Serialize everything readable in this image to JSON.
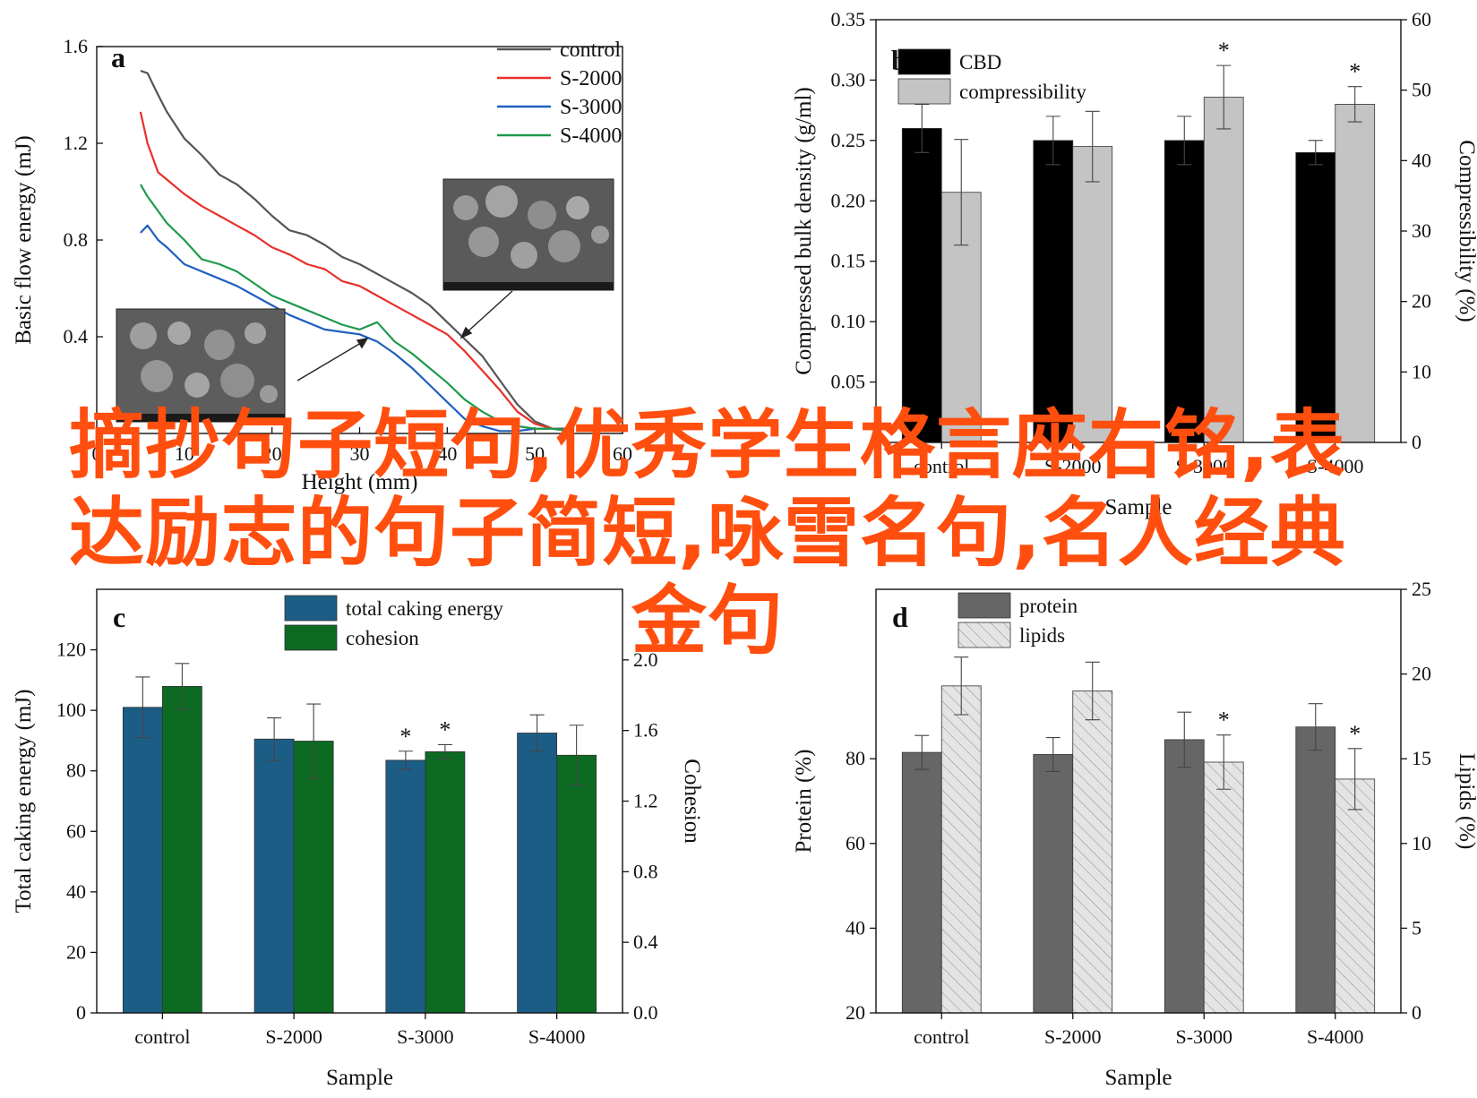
{
  "panels": {
    "a": {
      "letter": "a",
      "chart_data": {
        "type": "line",
        "xlabel": "Height (mm)",
        "ylabel": "Basic flow energy (mJ)",
        "xlim": [
          0,
          60
        ],
        "ylim": [
          0,
          1.6
        ],
        "xticks": [
          0,
          10,
          20,
          30,
          40,
          50,
          60
        ],
        "yticks": [
          0.4,
          0.8,
          1.2,
          1.6
        ],
        "legend": "top-right",
        "series": [
          {
            "name": "control",
            "color": "#555555",
            "x": [
              5,
              5.8,
              7,
              8,
              10,
              12,
              14,
              16,
              18,
              20,
              22,
              24,
              26,
              28,
              30,
              32,
              34,
              36,
              38,
              40,
              42,
              44,
              46,
              48,
              50,
              52,
              54
            ],
            "y": [
              1.5,
              1.49,
              1.4,
              1.33,
              1.22,
              1.15,
              1.07,
              1.03,
              0.97,
              0.9,
              0.84,
              0.82,
              0.78,
              0.73,
              0.7,
              0.66,
              0.62,
              0.58,
              0.53,
              0.46,
              0.39,
              0.32,
              0.22,
              0.12,
              0.05,
              0.02,
              0.02
            ]
          },
          {
            "name": "S-2000",
            "color": "#e8302b",
            "x": [
              5,
              5.8,
              7,
              8,
              10,
              12,
              14,
              16,
              18,
              20,
              22,
              24,
              26,
              28,
              30,
              32,
              34,
              36,
              38,
              40,
              42,
              44,
              46,
              48,
              50,
              52,
              54
            ],
            "y": [
              1.33,
              1.2,
              1.08,
              1.05,
              0.99,
              0.94,
              0.9,
              0.86,
              0.82,
              0.77,
              0.74,
              0.7,
              0.68,
              0.63,
              0.61,
              0.57,
              0.53,
              0.49,
              0.45,
              0.41,
              0.34,
              0.26,
              0.18,
              0.09,
              0.04,
              0.02,
              0.01
            ]
          },
          {
            "name": "S-3000",
            "color": "#1f5fbf",
            "x": [
              5,
              5.8,
              7,
              8,
              10,
              12,
              14,
              16,
              18,
              20,
              22,
              24,
              26,
              28,
              30,
              32,
              34,
              36,
              38,
              40,
              42,
              44,
              46,
              48,
              50,
              52,
              54
            ],
            "y": [
              0.83,
              0.86,
              0.8,
              0.77,
              0.7,
              0.67,
              0.64,
              0.61,
              0.57,
              0.53,
              0.49,
              0.46,
              0.43,
              0.42,
              0.41,
              0.38,
              0.33,
              0.27,
              0.2,
              0.13,
              0.06,
              0.03,
              0.01,
              0.01,
              0.02,
              0.02,
              0.01
            ]
          },
          {
            "name": "S-4000",
            "color": "#1f9a4c",
            "x": [
              5,
              5.8,
              7,
              8,
              10,
              12,
              14,
              16,
              18,
              20,
              22,
              24,
              26,
              28,
              30,
              32,
              34,
              36,
              38,
              40,
              42,
              44,
              46,
              48,
              50,
              52,
              54
            ],
            "y": [
              1.03,
              0.98,
              0.92,
              0.87,
              0.8,
              0.72,
              0.7,
              0.67,
              0.62,
              0.57,
              0.54,
              0.51,
              0.48,
              0.45,
              0.43,
              0.46,
              0.38,
              0.33,
              0.27,
              0.21,
              0.14,
              0.09,
              0.05,
              0.03,
              0.02,
              0.02,
              0.01
            ]
          }
        ]
      }
    },
    "b": {
      "letter": "b",
      "chart_data": {
        "type": "bar",
        "xlabel": "Sample",
        "ylabel": "Compressed bulk density (g/ml)",
        "ylabel_right": "Compressibility (%)",
        "categories": [
          "control",
          "S-2000",
          "S-3000",
          "S-4000"
        ],
        "ylim": [
          0,
          0.35
        ],
        "ylim_right": [
          0,
          60
        ],
        "yticks": [
          0.05,
          0.1,
          0.15,
          0.2,
          0.25,
          0.3,
          0.35
        ],
        "ytick_labels": [
          "0.05",
          "0.10",
          "0.15",
          "0.20",
          "0.25",
          "0.30",
          "0.35"
        ],
        "yticks_right": [
          0,
          10,
          20,
          30,
          40,
          50,
          60
        ],
        "legend": "top-left",
        "series": [
          {
            "name": "CBD",
            "color": "#000000",
            "axis": "left",
            "values": [
              0.26,
              0.25,
              0.25,
              0.24
            ],
            "errors": [
              0.02,
              0.02,
              0.02,
              0.01
            ],
            "stars": [
              "",
              "",
              "",
              ""
            ]
          },
          {
            "name": "compressibility",
            "color": "#c4c4c4",
            "axis": "right",
            "values": [
              35.5,
              42.0,
              49.0,
              48.0
            ],
            "errors": [
              7.5,
              5.0,
              4.5,
              2.5
            ],
            "stars": [
              "",
              "",
              "*",
              "*"
            ]
          }
        ]
      }
    },
    "c": {
      "letter": "c",
      "chart_data": {
        "type": "bar",
        "xlabel": "Sample",
        "ylabel": "Total caking energy (mJ)",
        "ylabel_right": "Cohesion",
        "categories": [
          "control",
          "S-2000",
          "S-3000",
          "S-4000"
        ],
        "ylim": [
          0,
          140
        ],
        "ylim_right": [
          0.0,
          2.4
        ],
        "yticks": [
          0,
          20,
          40,
          60,
          80,
          100,
          120
        ],
        "ytick_labels": [
          "0",
          "20",
          "40",
          "60",
          "80",
          "100",
          "120"
        ],
        "yticks_right": [
          0.0,
          0.4,
          0.8,
          1.2,
          1.6,
          2.0
        ],
        "ytick_labels_right": [
          "0.0",
          "0.4",
          "0.8",
          "1.2",
          "1.6",
          "2.0"
        ],
        "legend": "top-center",
        "series": [
          {
            "name": "total caking energy",
            "color": "#1c5d86",
            "axis": "left",
            "values": [
              101,
              90.5,
              83.5,
              92.5
            ],
            "errors": [
              10,
              7,
              3,
              6
            ],
            "stars": [
              "",
              "",
              "*",
              ""
            ]
          },
          {
            "name": "cohesion",
            "color": "#0d6a22",
            "axis": "right",
            "values": [
              1.85,
              1.54,
              1.48,
              1.46
            ],
            "errors": [
              0.13,
              0.21,
              0.04,
              0.17
            ],
            "stars": [
              "",
              "",
              "*",
              ""
            ]
          }
        ]
      }
    },
    "d": {
      "letter": "d",
      "chart_data": {
        "type": "bar",
        "xlabel": "Sample",
        "ylabel": "Protein (%)",
        "ylabel_right": "Lipids (%)",
        "categories": [
          "control",
          "S-2000",
          "S-3000",
          "S-4000"
        ],
        "ylim": [
          20,
          120
        ],
        "ylim_right": [
          0,
          25
        ],
        "yticks": [
          20,
          40,
          60,
          80
        ],
        "yticks_right": [
          0,
          5,
          10,
          15,
          20,
          25
        ],
        "legend": "top-left",
        "series": [
          {
            "name": "protein",
            "color": "#666666",
            "axis": "left",
            "values": [
              81.5,
              81,
              84.5,
              87.5
            ],
            "errors": [
              4,
              4,
              6.5,
              5.5
            ],
            "stars": [
              "",
              "",
              "",
              ""
            ]
          },
          {
            "name": "lipids",
            "color": "#e2e2e2",
            "axis": "right",
            "hatch": true,
            "values": [
              19.3,
              19.0,
              14.8,
              13.8
            ],
            "errors": [
              1.7,
              1.7,
              1.6,
              1.8
            ],
            "stars": [
              "",
              "",
              "*",
              "*"
            ]
          }
        ]
      }
    }
  },
  "overlay_text": "摘抄句子短句,优秀学生格言座右铭,表达励志的句子简短,咏雪名句,名人经典金句",
  "colors": {
    "overlay": "#ff4e0e"
  }
}
